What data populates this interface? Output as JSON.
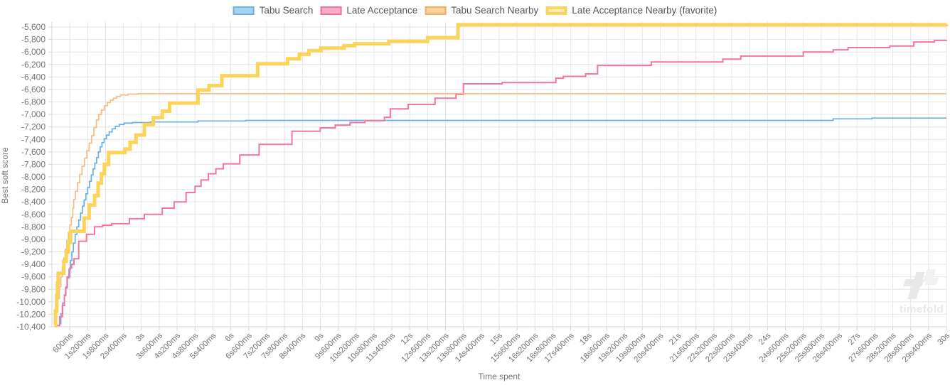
{
  "watermark": {
    "brand": "timefold"
  },
  "chart_data": {
    "type": "line",
    "subtype": "step-after",
    "title": "",
    "xlabel": "Time spent",
    "ylabel": "Best soft score",
    "grid": true,
    "legend_position": "top",
    "xlim_ms": [
      0,
      30000
    ],
    "ylim": [
      -10400,
      -5520
    ],
    "colors": {
      "grid": "#e6e6e6",
      "axis": "#d6d6d6",
      "tick_text": "#757575",
      "legend_text": "#555555",
      "watermark": "#e9e9e9"
    },
    "x_tick_ms": [
      600,
      1200,
      1800,
      2400,
      3000,
      3600,
      4200,
      4800,
      5400,
      6000,
      6600,
      7200,
      7800,
      8400,
      9000,
      9600,
      10200,
      10800,
      11400,
      12000,
      12600,
      13200,
      13800,
      14400,
      15000,
      15600,
      16200,
      16800,
      17400,
      18000,
      18600,
      19200,
      19800,
      20400,
      21000,
      21600,
      22200,
      22800,
      23400,
      24000,
      24600,
      25200,
      25800,
      26400,
      27000,
      27600,
      28200,
      28800,
      29400,
      30000
    ],
    "x_tick_labels": [
      "600ms",
      "1s200ms",
      "1s800ms",
      "2s400ms",
      "3s",
      "3s600ms",
      "4s200ms",
      "4s800ms",
      "5s400ms",
      "6s",
      "6s600ms",
      "7s200ms",
      "7s800ms",
      "8s400ms",
      "9s",
      "9s600ms",
      "10s200ms",
      "10s800ms",
      "11s400ms",
      "12s",
      "12s600ms",
      "13s200ms",
      "13s800ms",
      "14s400ms",
      "15s",
      "15s600ms",
      "16s200ms",
      "16s800ms",
      "17s400ms",
      "18s",
      "18s600ms",
      "19s200ms",
      "19s800ms",
      "20s400ms",
      "21s",
      "21s600ms",
      "22s200ms",
      "22s800ms",
      "23s400ms",
      "24s",
      "24s600ms",
      "25s200ms",
      "25s800ms",
      "26s400ms",
      "27s",
      "27s600ms",
      "28s200ms",
      "28s800ms",
      "29s400ms",
      "30s"
    ],
    "y_tick_values": [
      -5600,
      -5800,
      -6000,
      -6200,
      -6400,
      -6600,
      -6800,
      -7000,
      -7200,
      -7400,
      -7600,
      -7800,
      -8000,
      -8200,
      -8400,
      -8600,
      -8800,
      -9000,
      -9200,
      -9400,
      -9600,
      -9800,
      -10000,
      -10200,
      -10400
    ],
    "y_tick_labels": [
      "-5,600",
      "-5,800",
      "-6,000",
      "-6,200",
      "-6,400",
      "-6,600",
      "-6,800",
      "-7,000",
      "-7,200",
      "-7,400",
      "-7,600",
      "-7,800",
      "-8,000",
      "-8,200",
      "-8,400",
      "-8,600",
      "-8,800",
      "-9,000",
      "-9,200",
      "-9,400",
      "-9,600",
      "-9,800",
      "-10,000",
      "-10,200",
      "-10,400"
    ],
    "series": [
      {
        "name": "Tabu Search",
        "line_color": "#68b1e6",
        "swatch_fill": "#a9d4f1",
        "swatch_border": "#6ab4e8",
        "line_width": 1.7,
        "favorite": false,
        "final_score": -7058,
        "points": [
          [
            250,
            -10350
          ],
          [
            300,
            -10190
          ],
          [
            360,
            -10020
          ],
          [
            420,
            -9890
          ],
          [
            470,
            -9760
          ],
          [
            520,
            -9620
          ],
          [
            570,
            -9480
          ],
          [
            620,
            -9340
          ],
          [
            670,
            -9200
          ],
          [
            720,
            -9060
          ],
          [
            780,
            -8920
          ],
          [
            840,
            -8800
          ],
          [
            900,
            -8690
          ],
          [
            960,
            -8580
          ],
          [
            1020,
            -8470
          ],
          [
            1080,
            -8370
          ],
          [
            1140,
            -8270
          ],
          [
            1200,
            -8170
          ],
          [
            1260,
            -8070
          ],
          [
            1320,
            -7970
          ],
          [
            1380,
            -7870
          ],
          [
            1440,
            -7780
          ],
          [
            1500,
            -7690
          ],
          [
            1560,
            -7600
          ],
          [
            1620,
            -7520
          ],
          [
            1680,
            -7450
          ],
          [
            1750,
            -7390
          ],
          [
            1830,
            -7330
          ],
          [
            1920,
            -7280
          ],
          [
            2020,
            -7230
          ],
          [
            2130,
            -7190
          ],
          [
            2260,
            -7160
          ],
          [
            2420,
            -7140
          ],
          [
            2700,
            -7130
          ],
          [
            3300,
            -7120
          ],
          [
            4900,
            -7105
          ],
          [
            6500,
            -7095
          ],
          [
            26200,
            -7070
          ],
          [
            27500,
            -7058
          ],
          [
            30000,
            -7058
          ]
        ]
      },
      {
        "name": "Late Acceptance",
        "line_color": "#f2779d",
        "swatch_fill": "#f8abc4",
        "swatch_border": "#f0719a",
        "line_width": 2,
        "favorite": false,
        "final_score": -5810,
        "points": [
          [
            150,
            -10380
          ],
          [
            260,
            -10240
          ],
          [
            350,
            -10060
          ],
          [
            420,
            -9900
          ],
          [
            460,
            -9780
          ],
          [
            510,
            -9600
          ],
          [
            600,
            -9460
          ],
          [
            660,
            -9400
          ],
          [
            740,
            -9310
          ],
          [
            900,
            -9030
          ],
          [
            1160,
            -8920
          ],
          [
            1430,
            -8800
          ],
          [
            1700,
            -8775
          ],
          [
            2000,
            -8750
          ],
          [
            2600,
            -8670
          ],
          [
            3100,
            -8600
          ],
          [
            3700,
            -8500
          ],
          [
            4100,
            -8400
          ],
          [
            4500,
            -8250
          ],
          [
            4800,
            -8150
          ],
          [
            5000,
            -8050
          ],
          [
            5250,
            -7950
          ],
          [
            5500,
            -7870
          ],
          [
            5750,
            -7790
          ],
          [
            6300,
            -7650
          ],
          [
            6950,
            -7480
          ],
          [
            8050,
            -7270
          ],
          [
            9000,
            -7215
          ],
          [
            9500,
            -7170
          ],
          [
            10000,
            -7130
          ],
          [
            10500,
            -7100
          ],
          [
            11150,
            -7045
          ],
          [
            11350,
            -6910
          ],
          [
            11950,
            -6840
          ],
          [
            12850,
            -6740
          ],
          [
            13550,
            -6680
          ],
          [
            13800,
            -6510
          ],
          [
            15100,
            -6490
          ],
          [
            16900,
            -6420
          ],
          [
            17150,
            -6390
          ],
          [
            17900,
            -6350
          ],
          [
            18300,
            -6215
          ],
          [
            20100,
            -6160
          ],
          [
            22500,
            -6115
          ],
          [
            23100,
            -6065
          ],
          [
            25200,
            -6000
          ],
          [
            26200,
            -5965
          ],
          [
            26700,
            -5930
          ],
          [
            28100,
            -5905
          ],
          [
            28900,
            -5840
          ],
          [
            29600,
            -5815
          ],
          [
            30000,
            -5810
          ]
        ]
      },
      {
        "name": "Tabu Search Nearby",
        "line_color": "#f8bc82",
        "swatch_fill": "#fbd1a0",
        "swatch_border": "#f7a95c",
        "line_width": 1.7,
        "favorite": false,
        "final_score": -6668,
        "points": [
          [
            100,
            -10400
          ],
          [
            150,
            -10150
          ],
          [
            200,
            -9950
          ],
          [
            250,
            -9760
          ],
          [
            300,
            -9600
          ],
          [
            350,
            -9450
          ],
          [
            400,
            -9300
          ],
          [
            450,
            -9160
          ],
          [
            500,
            -9020
          ],
          [
            550,
            -8890
          ],
          [
            600,
            -8770
          ],
          [
            650,
            -8650
          ],
          [
            700,
            -8500
          ],
          [
            730,
            -8360
          ],
          [
            790,
            -8230
          ],
          [
            860,
            -8090
          ],
          [
            930,
            -7960
          ],
          [
            1010,
            -7830
          ],
          [
            1090,
            -7700
          ],
          [
            1170,
            -7580
          ],
          [
            1250,
            -7460
          ],
          [
            1330,
            -7340
          ],
          [
            1410,
            -7210
          ],
          [
            1490,
            -7090
          ],
          [
            1570,
            -7000
          ],
          [
            1660,
            -6930
          ],
          [
            1760,
            -6860
          ],
          [
            1860,
            -6810
          ],
          [
            1960,
            -6770
          ],
          [
            2060,
            -6740
          ],
          [
            2170,
            -6712
          ],
          [
            2300,
            -6690
          ],
          [
            2550,
            -6675
          ],
          [
            2900,
            -6668
          ],
          [
            30000,
            -6668
          ]
        ]
      },
      {
        "name": "Late Acceptance Nearby (favorite)",
        "line_color": "#fbd45c",
        "swatch_fill": "#fdecb6",
        "swatch_border": "#fbd45c",
        "line_width": 5,
        "favorite": true,
        "final_score": -5558,
        "points": [
          [
            80,
            -10380
          ],
          [
            120,
            -10150
          ],
          [
            160,
            -9900
          ],
          [
            185,
            -9700
          ],
          [
            210,
            -9545
          ],
          [
            400,
            -9350
          ],
          [
            480,
            -9200
          ],
          [
            555,
            -9050
          ],
          [
            625,
            -8870
          ],
          [
            1080,
            -8660
          ],
          [
            1250,
            -8450
          ],
          [
            1430,
            -8300
          ],
          [
            1550,
            -8100
          ],
          [
            1660,
            -7950
          ],
          [
            1760,
            -7800
          ],
          [
            1900,
            -7610
          ],
          [
            2450,
            -7555
          ],
          [
            2620,
            -7445
          ],
          [
            2820,
            -7330
          ],
          [
            3100,
            -7160
          ],
          [
            3400,
            -7050
          ],
          [
            3700,
            -6948
          ],
          [
            3950,
            -6818
          ],
          [
            4900,
            -6610
          ],
          [
            5270,
            -6538
          ],
          [
            5700,
            -6380
          ],
          [
            6900,
            -6188
          ],
          [
            7900,
            -6108
          ],
          [
            8300,
            -6038
          ],
          [
            8620,
            -5978
          ],
          [
            9020,
            -5938
          ],
          [
            9800,
            -5898
          ],
          [
            10150,
            -5868
          ],
          [
            11300,
            -5830
          ],
          [
            12600,
            -5770
          ],
          [
            13620,
            -5562
          ],
          [
            30000,
            -5558
          ]
        ]
      }
    ]
  }
}
